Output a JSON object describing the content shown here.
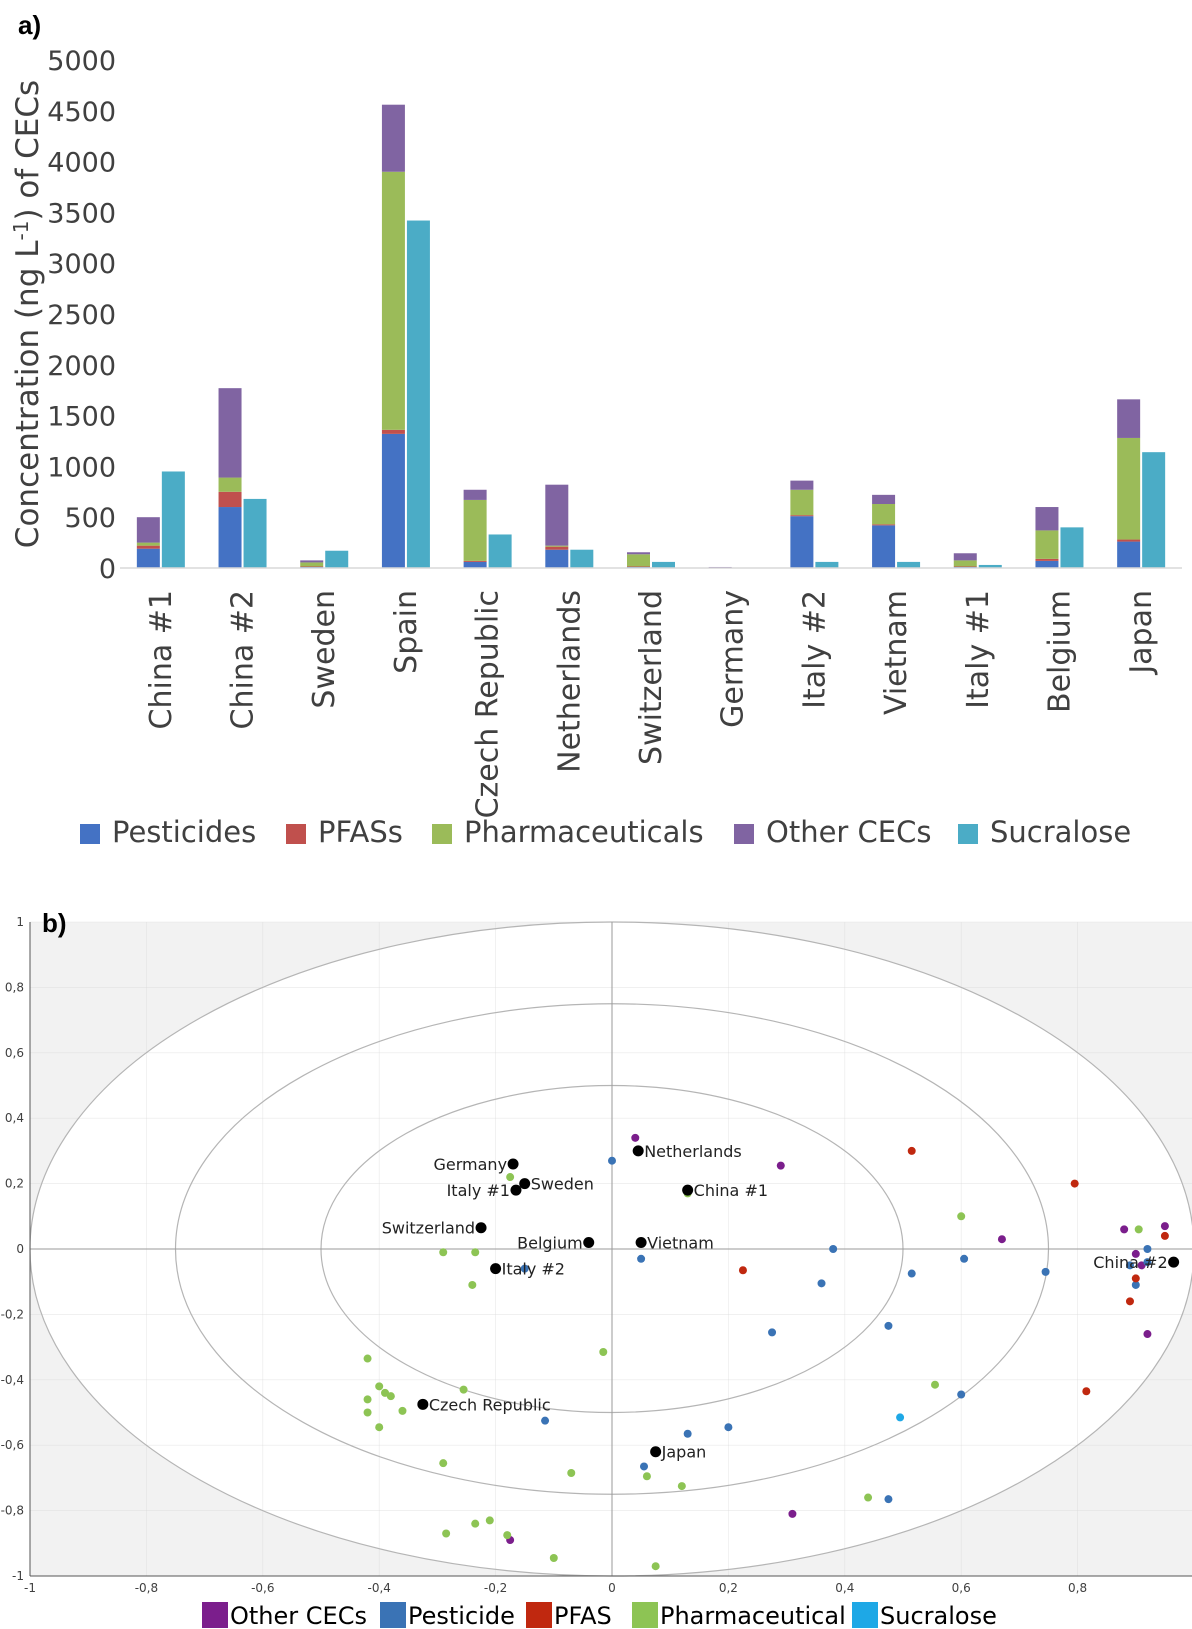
{
  "colors": {
    "pesticides": "#4472C4",
    "pfas": "#C0504D",
    "pharmaceuticals": "#9BBB59",
    "other": "#8064A2",
    "sucralose": "#4BACC6",
    "b_other": "#7B1E8C",
    "b_pesticide": "#3A73B5",
    "b_pfas": "#C0280F",
    "b_pharmaceutical": "#8DC454",
    "b_sucralose": "#1EA8E6",
    "sample": "#000000"
  },
  "chart_data": [
    {
      "type": "bar",
      "panel_label": "a)",
      "title": "",
      "xlabel": "",
      "ylabel": "Concentration (ng L",
      "ylabel_sup": "-1",
      "ylabel_tail": ") of CECs",
      "ylim": [
        0,
        5000
      ],
      "yticks": [
        "0",
        "500",
        "1000",
        "1500",
        "2000",
        "2500",
        "3000",
        "3500",
        "4000",
        "4500",
        "5000"
      ],
      "stacked": true,
      "categories": [
        "China #1",
        "China #2",
        "Sweden",
        "Spain",
        "Czech Republic",
        "Netherlands",
        "Switzerland",
        "Germany",
        "Italy #2",
        "Vietnam",
        "Italy #1",
        "Belgium",
        "Japan"
      ],
      "series": [
        {
          "name": "Pesticides",
          "values": [
            190,
            600,
            10,
            1320,
            60,
            180,
            10,
            2,
            510,
            420,
            10,
            70,
            260
          ],
          "color_key": "pesticides",
          "stack": "cec"
        },
        {
          "name": "PFASs",
          "values": [
            30,
            150,
            5,
            40,
            10,
            30,
            5,
            1,
            10,
            10,
            5,
            20,
            20
          ],
          "color_key": "pfas",
          "stack": "cec"
        },
        {
          "name": "Pharmaceuticals",
          "values": [
            30,
            140,
            40,
            2540,
            600,
            10,
            120,
            2,
            250,
            200,
            60,
            280,
            1000
          ],
          "color_key": "pharmaceuticals",
          "stack": "cec"
        },
        {
          "name": "Other CECs",
          "values": [
            250,
            880,
            20,
            660,
            100,
            600,
            20,
            5,
            90,
            90,
            70,
            230,
            380
          ],
          "color_key": "other",
          "stack": "cec"
        },
        {
          "name": "Sucralose",
          "values": [
            950,
            680,
            170,
            3420,
            330,
            180,
            60,
            0,
            60,
            60,
            30,
            400,
            1140
          ],
          "color_key": "sucralose",
          "stack": "sucralose"
        }
      ],
      "legend": [
        "Pesticides",
        "PFASs",
        "Pharmaceuticals",
        "Other CECs",
        "Sucralose"
      ],
      "legend_position": "bottom",
      "grid": false
    },
    {
      "type": "scatter",
      "panel_label": "b)",
      "title": "",
      "xlabel": "",
      "ylabel": "",
      "xlim": [
        -1,
        1
      ],
      "ylim": [
        -1,
        1
      ],
      "xticks": [
        "-1",
        "-0,8",
        "-0,6",
        "-0,4",
        "-0,2",
        "0",
        "0,2",
        "0,4",
        "0,6",
        "0,8"
      ],
      "yticks": [
        "-1",
        "-0,8",
        "-0,6",
        "-0,4",
        "-0,2",
        "0",
        "0,2",
        "0,4",
        "0,6",
        "0,8",
        "1"
      ],
      "grid": true,
      "circles_radius": [
        0.5,
        0.75,
        1.0
      ],
      "legend": [
        "Other CECs",
        "Pesticide",
        "PFAS",
        "Pharmaceutical",
        "Sucralose"
      ],
      "legend_position": "bottom",
      "samples": [
        {
          "name": "Germany",
          "x": -0.17,
          "y": 0.26,
          "side": "left"
        },
        {
          "name": "Netherlands",
          "x": 0.045,
          "y": 0.3,
          "side": "right"
        },
        {
          "name": "Sweden",
          "x": -0.15,
          "y": 0.2,
          "side": "right"
        },
        {
          "name": "Italy #1",
          "x": -0.165,
          "y": 0.18,
          "side": "left"
        },
        {
          "name": "China #1",
          "x": 0.13,
          "y": 0.18,
          "side": "right"
        },
        {
          "name": "Switzerland",
          "x": -0.225,
          "y": 0.065,
          "side": "left"
        },
        {
          "name": "Belgium",
          "x": -0.04,
          "y": 0.02,
          "side": "left"
        },
        {
          "name": "Vietnam",
          "x": 0.05,
          "y": 0.02,
          "side": "right"
        },
        {
          "name": "Italy #2",
          "x": -0.2,
          "y": -0.06,
          "side": "right"
        },
        {
          "name": "China #2",
          "x": 0.965,
          "y": -0.04,
          "side": "left"
        },
        {
          "name": "Czech Republic",
          "x": -0.325,
          "y": -0.475,
          "side": "right"
        },
        {
          "name": "Japan",
          "x": 0.075,
          "y": -0.62,
          "side": "right"
        }
      ],
      "series": [
        {
          "name": "Other CECs",
          "color_key": "b_other",
          "points": [
            [
              0.04,
              0.34
            ],
            [
              0.29,
              0.255
            ],
            [
              0.67,
              0.03
            ],
            [
              0.88,
              0.06
            ],
            [
              0.95,
              0.07
            ],
            [
              0.9,
              -0.015
            ],
            [
              0.91,
              -0.05
            ],
            [
              0.92,
              -0.26
            ],
            [
              0.31,
              -0.81
            ],
            [
              -0.175,
              -0.89
            ]
          ]
        },
        {
          "name": "Pesticide",
          "color_key": "b_pesticide",
          "points": [
            [
              0.0,
              0.27
            ],
            [
              0.38,
              0.0
            ],
            [
              0.515,
              -0.075
            ],
            [
              0.605,
              -0.03
            ],
            [
              0.745,
              -0.07
            ],
            [
              0.36,
              -0.105
            ],
            [
              0.05,
              -0.03
            ],
            [
              -0.15,
              -0.06
            ],
            [
              0.275,
              -0.255
            ],
            [
              0.475,
              -0.235
            ],
            [
              0.6,
              -0.445
            ],
            [
              -0.115,
              -0.525
            ],
            [
              0.13,
              -0.565
            ],
            [
              0.2,
              -0.545
            ],
            [
              0.055,
              -0.665
            ],
            [
              0.475,
              -0.765
            ],
            [
              0.89,
              -0.05
            ],
            [
              0.92,
              0.0
            ],
            [
              0.9,
              -0.11
            ],
            [
              0.92,
              -0.04
            ]
          ]
        },
        {
          "name": "PFAS",
          "color_key": "b_pfas",
          "points": [
            [
              0.515,
              0.3
            ],
            [
              0.795,
              0.2
            ],
            [
              0.225,
              -0.065
            ],
            [
              0.95,
              0.04
            ],
            [
              0.9,
              -0.09
            ],
            [
              0.89,
              -0.16
            ],
            [
              0.815,
              -0.435
            ]
          ]
        },
        {
          "name": "Pharmaceutical",
          "color_key": "b_pharmaceutical",
          "points": [
            [
              -0.175,
              0.22
            ],
            [
              0.13,
              0.17
            ],
            [
              0.6,
              0.1
            ],
            [
              0.905,
              0.06
            ],
            [
              -0.29,
              -0.01
            ],
            [
              -0.235,
              -0.01
            ],
            [
              -0.24,
              -0.11
            ],
            [
              -0.015,
              -0.315
            ],
            [
              -0.42,
              -0.335
            ],
            [
              -0.4,
              -0.42
            ],
            [
              -0.39,
              -0.44
            ],
            [
              -0.38,
              -0.45
            ],
            [
              -0.42,
              -0.46
            ],
            [
              -0.36,
              -0.495
            ],
            [
              -0.42,
              -0.5
            ],
            [
              -0.4,
              -0.545
            ],
            [
              -0.255,
              -0.43
            ],
            [
              -0.29,
              -0.655
            ],
            [
              -0.07,
              -0.685
            ],
            [
              0.06,
              -0.695
            ],
            [
              0.12,
              -0.725
            ],
            [
              0.555,
              -0.415
            ],
            [
              0.44,
              -0.76
            ],
            [
              -0.285,
              -0.87
            ],
            [
              -0.235,
              -0.84
            ],
            [
              -0.21,
              -0.83
            ],
            [
              -0.18,
              -0.875
            ],
            [
              -0.1,
              -0.945
            ],
            [
              0.075,
              -0.97
            ]
          ]
        },
        {
          "name": "Sucralose",
          "color_key": "b_sucralose",
          "points": [
            [
              0.495,
              -0.515
            ]
          ]
        }
      ]
    }
  ]
}
